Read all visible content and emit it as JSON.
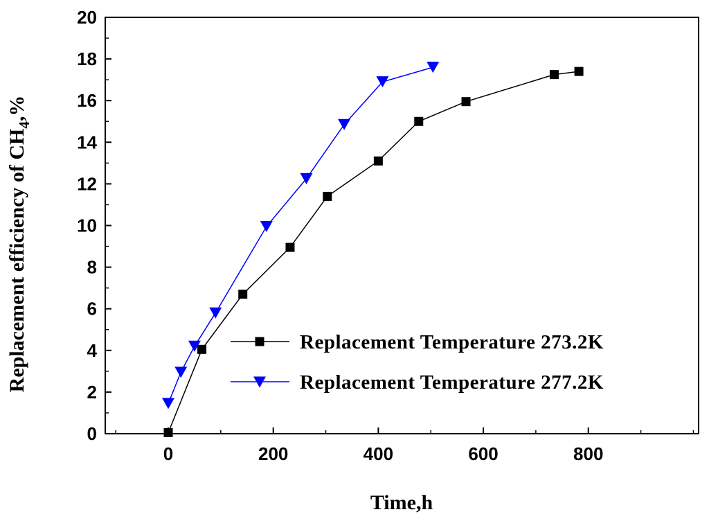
{
  "chart_data": {
    "type": "line",
    "title": "",
    "xlabel": "Time,h",
    "ylabel": {
      "prefix": "Replacement efficiency of CH",
      "subscript": "4",
      "suffix": ",%"
    },
    "xlim": [
      -120,
      1010
    ],
    "ylim": [
      0,
      20
    ],
    "xticks": [
      0,
      200,
      400,
      600,
      800
    ],
    "yticks": [
      0,
      2,
      4,
      6,
      8,
      10,
      12,
      14,
      16,
      18,
      20
    ],
    "legend_position": "bottom-right",
    "series": [
      {
        "name": "Replacement Temperature 273.2K",
        "color": "#000000",
        "marker": "square",
        "x": [
          0,
          64,
          142,
          232,
          303,
          400,
          477,
          567,
          735,
          782
        ],
        "y": [
          0.05,
          4.05,
          6.7,
          8.95,
          11.4,
          13.1,
          15.0,
          15.95,
          17.25,
          17.4
        ]
      },
      {
        "name": "Replacement Temperature 277.2K",
        "color": "#0000ff",
        "marker": "triangle-down",
        "x": [
          0,
          24,
          50,
          90,
          187,
          263,
          335,
          408,
          504
        ],
        "y": [
          1.45,
          2.95,
          4.2,
          5.8,
          9.95,
          12.25,
          14.85,
          16.9,
          17.6
        ]
      }
    ]
  }
}
